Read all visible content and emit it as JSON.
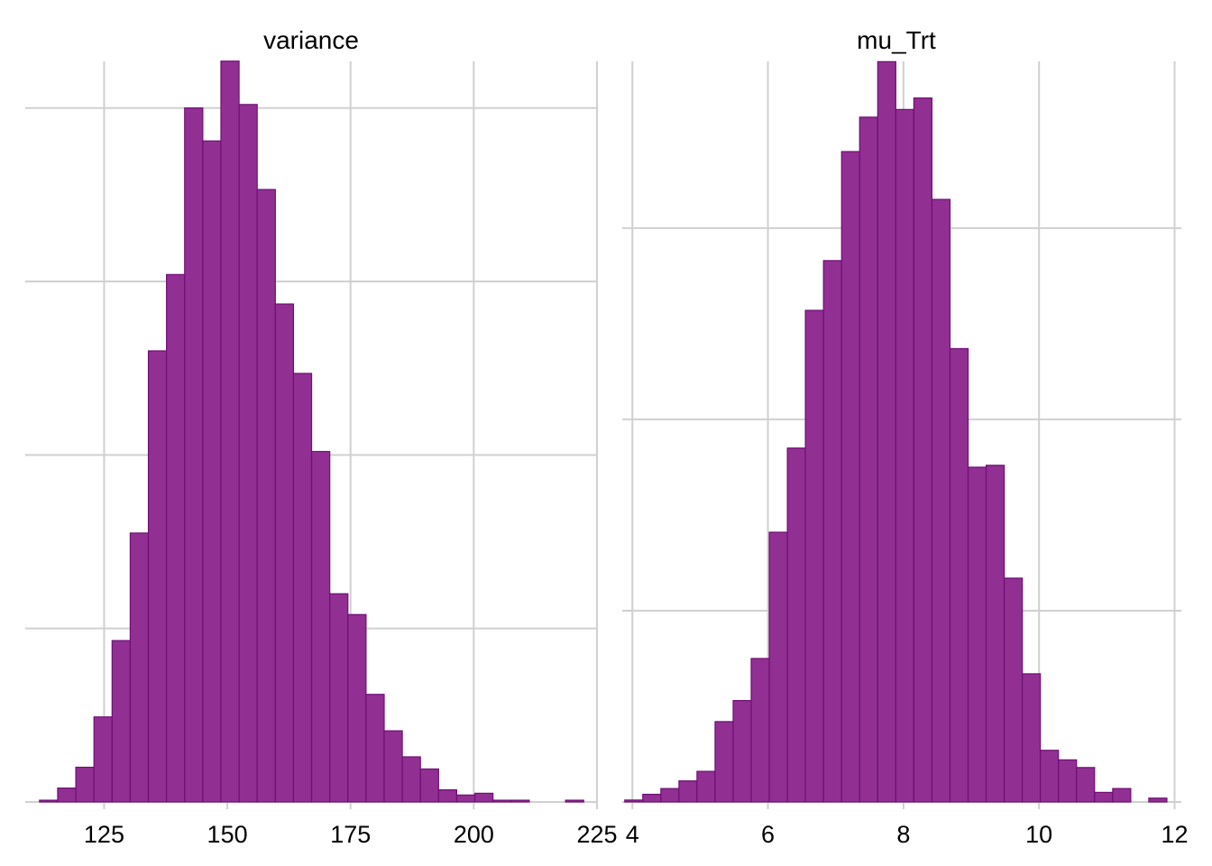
{
  "colors": {
    "bar_fill": "#912f93",
    "bar_stroke": "#6f0f74",
    "grid": "#d0d0d0",
    "text": "#000000",
    "background": "#ffffff"
  },
  "chart_data": [
    {
      "type": "bar",
      "title": "variance",
      "xlabel": "",
      "ylabel": "",
      "xlim": [
        109,
        225
      ],
      "ylim": [
        0,
        430
      ],
      "grid": true,
      "legend": "none",
      "x_ticks": [
        125,
        150,
        175,
        200,
        225
      ],
      "x_tick_labels": [
        "125",
        "150",
        "175",
        "200",
        "225"
      ],
      "y_gridlines": [
        0,
        100,
        200,
        300,
        400
      ],
      "bin_width": 3.68,
      "bin_starts": [
        111.9,
        115.58,
        119.26,
        122.94,
        126.62,
        130.3,
        133.98,
        137.66,
        141.34,
        145.02,
        148.7,
        152.38,
        156.06,
        159.74,
        163.42,
        167.1,
        170.78,
        174.46,
        178.14,
        181.82,
        185.5,
        189.18,
        192.86,
        196.54,
        200.22,
        203.9,
        207.58,
        211.26,
        214.94,
        218.62
      ],
      "counts": [
        1,
        8,
        20,
        49,
        93,
        155,
        260,
        304,
        400,
        381,
        427,
        402,
        353,
        287,
        247,
        202,
        120,
        108,
        62,
        41,
        26,
        19,
        7,
        4,
        5,
        1,
        1,
        0,
        0,
        1
      ]
    },
    {
      "type": "bar",
      "title": "mu_Trt",
      "xlabel": "",
      "ylabel": "",
      "xlim": [
        3.85,
        12.1
      ],
      "ylim": [
        0,
        390
      ],
      "grid": true,
      "legend": "none",
      "x_ticks": [
        4,
        6,
        8,
        10,
        12
      ],
      "x_tick_labels": [
        "4",
        "6",
        "8",
        "10",
        "12"
      ],
      "y_gridlines": [
        0,
        100,
        200,
        300
      ],
      "bin_width": 0.2667,
      "bin_starts": [
        3.887,
        4.153,
        4.42,
        4.687,
        4.953,
        5.22,
        5.487,
        5.753,
        6.02,
        6.287,
        6.553,
        6.82,
        7.087,
        7.353,
        7.62,
        7.887,
        8.153,
        8.42,
        8.687,
        8.953,
        9.22,
        9.487,
        9.753,
        10.02,
        10.287,
        10.553,
        10.82,
        11.087,
        11.353,
        11.62
      ],
      "counts": [
        1,
        4,
        7,
        11,
        16,
        42,
        53,
        75,
        141,
        185,
        257,
        283,
        340,
        358,
        387,
        362,
        368,
        315,
        237,
        175,
        176,
        117,
        67,
        27,
        22,
        18,
        5,
        7,
        0,
        2
      ]
    }
  ]
}
